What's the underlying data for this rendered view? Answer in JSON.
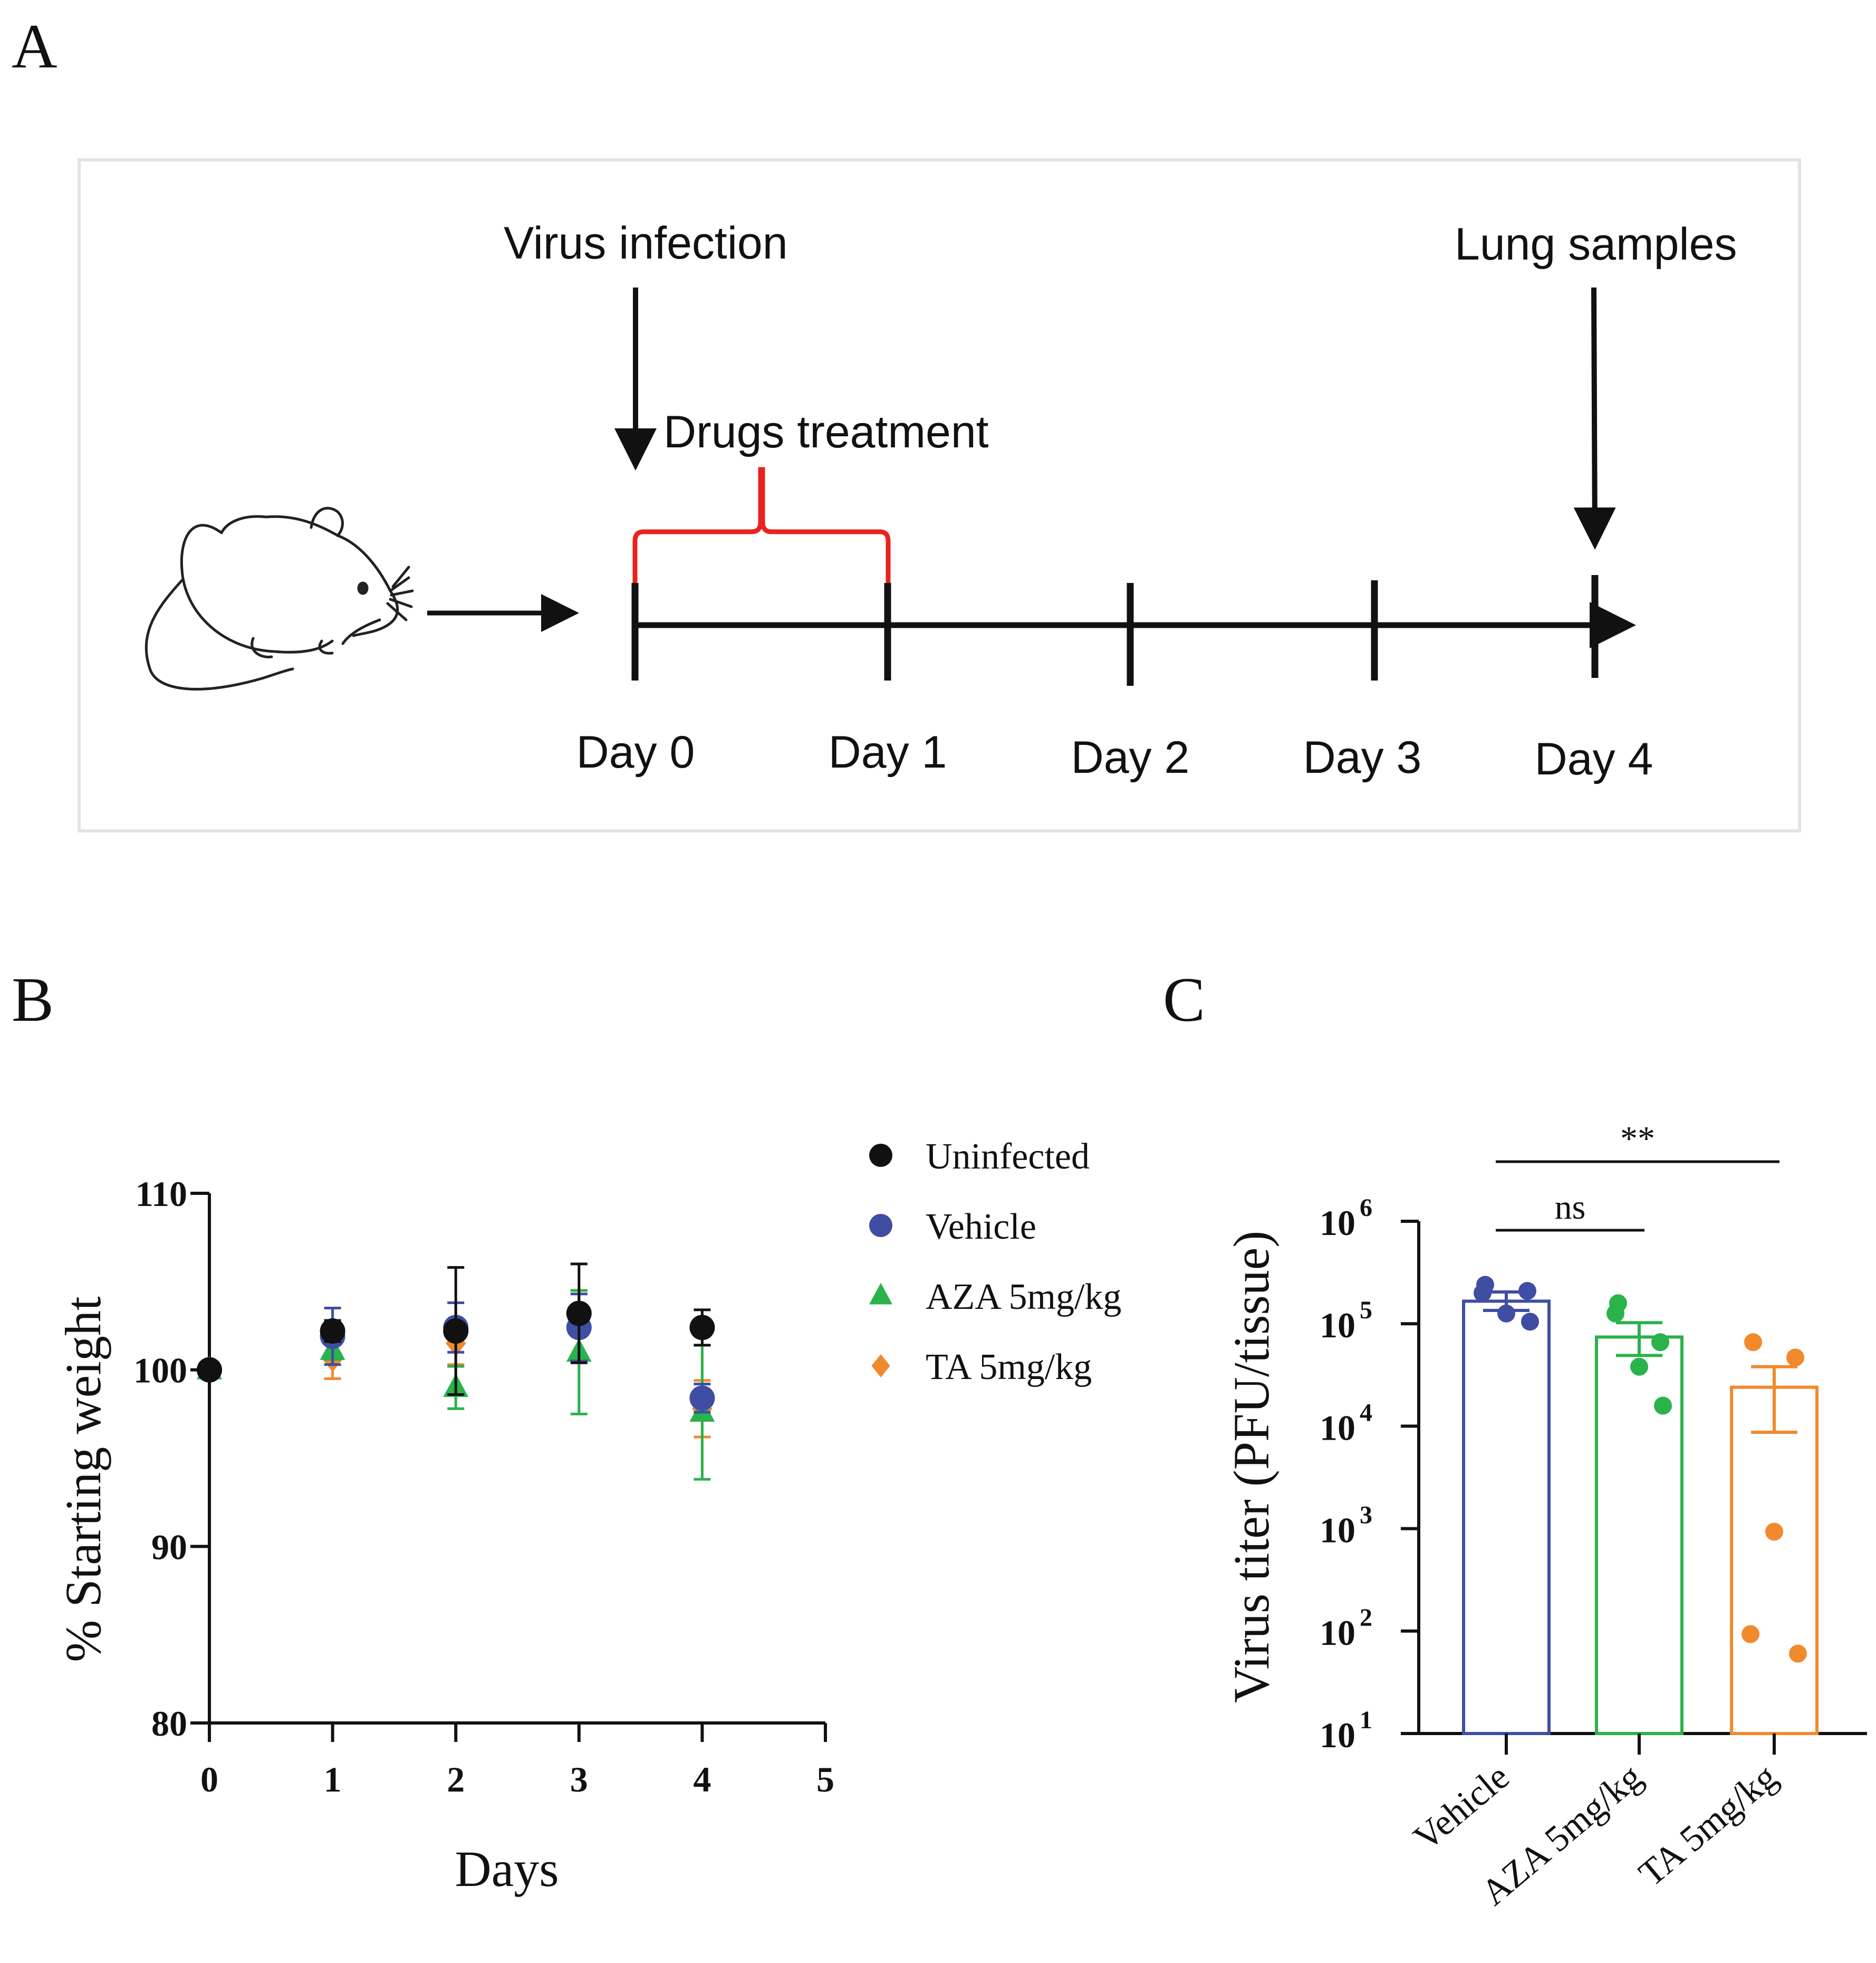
{
  "panels": {
    "a": "A",
    "b": "B",
    "c": "C"
  },
  "timeline": {
    "virus_infection": "Virus infection",
    "drugs_treatment": "Drugs treatment",
    "lung_samples": "Lung samples",
    "days": [
      "Day 0",
      "Day 1",
      "Day 2",
      "Day 3",
      "Day 4"
    ],
    "bracket_color": "#e8231d"
  },
  "chart_data": [
    {
      "type": "scatter",
      "panel": "B",
      "title": "",
      "xlabel": "Days",
      "ylabel": "% Starting weight",
      "xlim": [
        0,
        5
      ],
      "ylim": [
        80,
        110
      ],
      "xticks": [
        "0",
        "1",
        "2",
        "3",
        "4",
        "5"
      ],
      "yticks": [
        "80",
        "90",
        "100",
        "110"
      ],
      "legend_position": "top-right",
      "series": [
        {
          "name": "Uninfected",
          "color": "#111111",
          "marker": "circle",
          "x": [
            0,
            1,
            2,
            3,
            4
          ],
          "y": [
            100,
            102.2,
            102.2,
            103.2,
            102.4
          ],
          "err": [
            0,
            0.6,
            3.6,
            2.8,
            1.0
          ]
        },
        {
          "name": "Vehicle",
          "color": "#3f4ea3",
          "marker": "circle",
          "x": [
            0,
            1,
            2,
            3,
            4
          ],
          "y": [
            100,
            101.9,
            102.4,
            102.4,
            98.4
          ],
          "err": [
            0,
            1.6,
            1.4,
            1.9,
            0.8
          ]
        },
        {
          "name": "AZA 5mg/kg",
          "color": "#2ab24b",
          "marker": "triangle",
          "x": [
            0,
            1,
            2,
            3,
            4
          ],
          "y": [
            100,
            101.1,
            99.0,
            101.0,
            97.6
          ],
          "err": [
            0,
            0.5,
            1.2,
            3.5,
            3.8
          ]
        },
        {
          "name": "TA 5mg/kg",
          "color": "#f1892d",
          "marker": "diamond",
          "x": [
            0,
            1,
            2,
            3,
            4
          ],
          "y": [
            100,
            100.6,
            101.5,
            102.6,
            97.8
          ],
          "err": [
            0,
            1.1,
            1.2,
            1.9,
            1.6
          ]
        }
      ]
    },
    {
      "type": "bar",
      "panel": "C",
      "title": "",
      "xlabel": "",
      "ylabel": "Virus titer (PFU/tissue)",
      "yscale": "log",
      "ylim_log10": [
        1,
        6
      ],
      "ytick_base": "10",
      "ytick_exponents": [
        "1",
        "2",
        "3",
        "4",
        "5",
        "6"
      ],
      "categories": [
        "Vehicle",
        "AZA 5mg/kg",
        "TA 5mg/kg"
      ],
      "colors": [
        "#3f4ea3",
        "#2ab24b",
        "#f1892d"
      ],
      "bar_values_log10": [
        5.22,
        4.87,
        4.38
      ],
      "error_log10": [
        [
          5.13,
          5.31
        ],
        [
          4.69,
          5.01
        ],
        [
          3.94,
          4.58
        ]
      ],
      "points_log10": [
        [
          5.38,
          5.32,
          5.1,
          5.3,
          5.02
        ],
        [
          5.2,
          4.82,
          4.58,
          5.1,
          4.2
        ],
        [
          4.82,
          4.67,
          2.97,
          1.97,
          1.78
        ]
      ],
      "significance": [
        {
          "from": 0,
          "to": 1,
          "label": "ns"
        },
        {
          "from": 0,
          "to": 2,
          "label": "**"
        }
      ]
    }
  ]
}
